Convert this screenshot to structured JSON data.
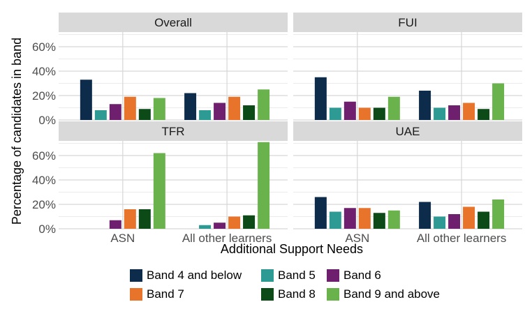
{
  "chart_data": {
    "type": "bar",
    "xlabel": "Additional Support Needs",
    "ylabel": "Percentage of candidates in band",
    "ylim": [
      0,
      0.72
    ],
    "yticks": [
      "0%",
      "20%",
      "40%",
      "60%"
    ],
    "categories": [
      "ASN",
      "All other learners"
    ],
    "grid": true,
    "legend_position": "bottom",
    "bands": [
      {
        "name": "Band 4 and below",
        "color": "#0d2b4a"
      },
      {
        "name": "Band 5",
        "color": "#2d9a94"
      },
      {
        "name": "Band 6",
        "color": "#6e1f6e"
      },
      {
        "name": "Band 7",
        "color": "#e8732a"
      },
      {
        "name": "Band 8",
        "color": "#0c4a18"
      },
      {
        "name": "Band 9 and above",
        "color": "#6ab34c"
      }
    ],
    "panels": [
      {
        "title": "Overall",
        "series": [
          {
            "name": "Band 4 and below",
            "values": [
              0.33,
              0.22
            ]
          },
          {
            "name": "Band 5",
            "values": [
              0.08,
              0.08
            ]
          },
          {
            "name": "Band 6",
            "values": [
              0.13,
              0.14
            ]
          },
          {
            "name": "Band 7",
            "values": [
              0.19,
              0.19
            ]
          },
          {
            "name": "Band 8",
            "values": [
              0.09,
              0.12
            ]
          },
          {
            "name": "Band 9 and above",
            "values": [
              0.18,
              0.25
            ]
          }
        ]
      },
      {
        "title": "FUI",
        "series": [
          {
            "name": "Band 4 and below",
            "values": [
              0.35,
              0.24
            ]
          },
          {
            "name": "Band 5",
            "values": [
              0.1,
              0.1
            ]
          },
          {
            "name": "Band 6",
            "values": [
              0.15,
              0.12
            ]
          },
          {
            "name": "Band 7",
            "values": [
              0.1,
              0.14
            ]
          },
          {
            "name": "Band 8",
            "values": [
              0.1,
              0.09
            ]
          },
          {
            "name": "Band 9 and above",
            "values": [
              0.19,
              0.3
            ]
          }
        ]
      },
      {
        "title": "TFR",
        "series": [
          {
            "name": "Band 4 and below",
            "values": [
              0.0,
              0.0
            ]
          },
          {
            "name": "Band 5",
            "values": [
              0.0,
              0.03
            ]
          },
          {
            "name": "Band 6",
            "values": [
              0.07,
              0.05
            ]
          },
          {
            "name": "Band 7",
            "values": [
              0.16,
              0.1
            ]
          },
          {
            "name": "Band 8",
            "values": [
              0.16,
              0.11
            ]
          },
          {
            "name": "Band 9 and above",
            "values": [
              0.62,
              0.71
            ]
          }
        ]
      },
      {
        "title": "UAE",
        "series": [
          {
            "name": "Band 4 and below",
            "values": [
              0.26,
              0.22
            ]
          },
          {
            "name": "Band 5",
            "values": [
              0.14,
              0.1
            ]
          },
          {
            "name": "Band 6",
            "values": [
              0.17,
              0.12
            ]
          },
          {
            "name": "Band 7",
            "values": [
              0.17,
              0.18
            ]
          },
          {
            "name": "Band 8",
            "values": [
              0.13,
              0.14
            ]
          },
          {
            "name": "Band 9 and above",
            "values": [
              0.15,
              0.24
            ]
          }
        ]
      }
    ]
  }
}
